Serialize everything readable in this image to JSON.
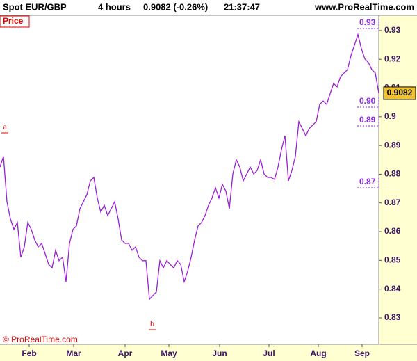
{
  "chart_data": {
    "type": "line",
    "header": {
      "instrument": "Spot EUR/GBP",
      "period": "4 hours",
      "quote": "0.9082 (-0.26%)",
      "time": "21:37:47",
      "site": "www.ProRealTime.com"
    },
    "panel_label": "Price",
    "copyright": "© ProRealTime.com",
    "annotations": [
      "a",
      "b"
    ],
    "levels": [
      "0.93",
      "0.90",
      "0.89",
      "0.87"
    ],
    "last_price": 0.9082,
    "x": [
      0,
      1,
      2,
      3,
      4,
      5,
      6,
      7,
      8,
      9,
      10,
      11,
      12,
      13,
      14,
      15,
      16,
      17,
      18,
      19,
      20,
      21,
      22,
      23,
      24,
      25,
      26,
      27,
      28,
      29,
      30,
      31,
      32,
      33,
      34,
      35,
      36,
      37,
      38,
      39,
      40,
      41,
      42,
      43,
      44,
      45,
      46,
      47,
      48,
      49,
      50,
      51,
      52,
      53,
      54,
      55,
      56,
      57,
      58,
      59,
      60,
      61,
      62,
      63,
      64,
      65,
      66,
      67,
      68,
      69,
      70,
      71,
      72,
      73,
      74,
      75,
      76,
      77,
      78,
      79,
      80,
      81,
      82,
      83,
      84,
      85,
      86,
      87,
      88,
      89,
      90,
      91,
      92,
      93,
      94,
      95,
      96,
      97,
      98,
      99,
      100,
      101,
      102,
      103,
      104,
      105,
      106,
      107,
      108,
      109
    ],
    "series": [
      {
        "name": "Spot EUR/GBP",
        "color": "#9b1fd6",
        "values": [
          0.8825,
          0.8862,
          0.8704,
          0.8644,
          0.8608,
          0.8632,
          0.8511,
          0.8547,
          0.8632,
          0.8608,
          0.8571,
          0.8547,
          0.8559,
          0.8523,
          0.8486,
          0.8474,
          0.8535,
          0.8499,
          0.8511,
          0.8426,
          0.8559,
          0.8608,
          0.862,
          0.868,
          0.8704,
          0.8729,
          0.8777,
          0.8789,
          0.8717,
          0.8668,
          0.8692,
          0.8656,
          0.868,
          0.8704,
          0.8644,
          0.8571,
          0.8559,
          0.8559,
          0.8535,
          0.8547,
          0.8511,
          0.8499,
          0.8499,
          0.8365,
          0.8378,
          0.839,
          0.8499,
          0.8474,
          0.8499,
          0.8486,
          0.8474,
          0.8499,
          0.8486,
          0.8426,
          0.8462,
          0.8511,
          0.8571,
          0.862,
          0.8632,
          0.8656,
          0.8692,
          0.8717,
          0.8753,
          0.8717,
          0.8765,
          0.8741,
          0.868,
          0.8801,
          0.885,
          0.8825,
          0.8777,
          0.8801,
          0.8825,
          0.8801,
          0.8813,
          0.885,
          0.8801,
          0.8789,
          0.8789,
          0.8782,
          0.8825,
          0.8886,
          0.8934,
          0.8777,
          0.8813,
          0.8862,
          0.8983,
          0.8959,
          0.8934,
          0.8959,
          0.8971,
          0.8983,
          0.9043,
          0.9055,
          0.9043,
          0.908,
          0.9116,
          0.9104,
          0.914,
          0.9152,
          0.9164,
          0.9213,
          0.9249,
          0.9286,
          0.9237,
          0.9201,
          0.9189,
          0.9164,
          0.9152,
          0.9082
        ]
      }
    ],
    "xlim": [
      0,
      109
    ],
    "xticks": [
      {
        "value": 8.4,
        "label": "Feb"
      },
      {
        "value": 21.2,
        "label": "Mar"
      },
      {
        "value": 36,
        "label": "Apr"
      },
      {
        "value": 48.6,
        "label": "May"
      },
      {
        "value": 63.2,
        "label": "Jun"
      },
      {
        "value": 77.4,
        "label": "Jul"
      },
      {
        "value": 91.6,
        "label": "Aug"
      },
      {
        "value": 104.2,
        "label": "Sep"
      }
    ],
    "ylim": [
      0.8208,
      0.9353
    ],
    "yticks": [
      0.83,
      0.84,
      0.85,
      0.86,
      0.87,
      0.88,
      0.89,
      0.9,
      0.91,
      0.92,
      0.93
    ]
  }
}
